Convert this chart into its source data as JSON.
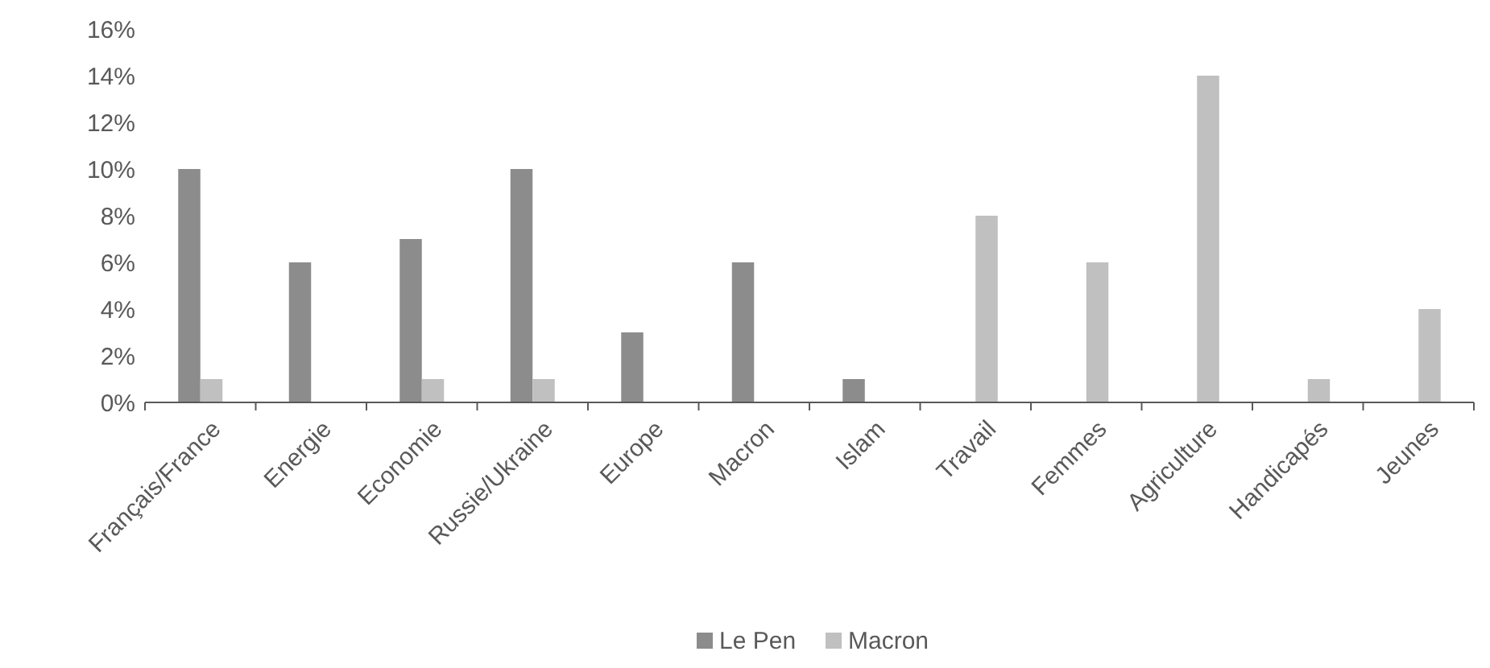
{
  "chart_data": {
    "type": "bar",
    "categories": [
      "Français/France",
      "Energie",
      "Economie",
      "Russie/Ukraine",
      "Europe",
      "Macron",
      "Islam",
      "Travail",
      "Femmes",
      "Agriculture",
      "Handicapés",
      "Jeunes"
    ],
    "series": [
      {
        "name": "Le Pen",
        "color": "#8c8c8c",
        "values": [
          10,
          6,
          7,
          10,
          3,
          6,
          1,
          0,
          0,
          0,
          0,
          0
        ]
      },
      {
        "name": "Macron",
        "color": "#c0c0c0",
        "values": [
          1,
          0,
          1,
          1,
          0,
          0,
          0,
          8,
          6,
          14,
          1,
          4
        ]
      }
    ],
    "ylim": [
      0,
      16
    ],
    "yticks": [
      {
        "value": 0,
        "label": "0%"
      },
      {
        "value": 2,
        "label": "2%"
      },
      {
        "value": 4,
        "label": "4%"
      },
      {
        "value": 6,
        "label": "6%"
      },
      {
        "value": 8,
        "label": "8%"
      },
      {
        "value": 10,
        "label": "10%"
      },
      {
        "value": 12,
        "label": "12%"
      },
      {
        "value": 14,
        "label": "14%"
      },
      {
        "value": 16,
        "label": "16%"
      }
    ],
    "grid": false,
    "legend": "bottom"
  }
}
